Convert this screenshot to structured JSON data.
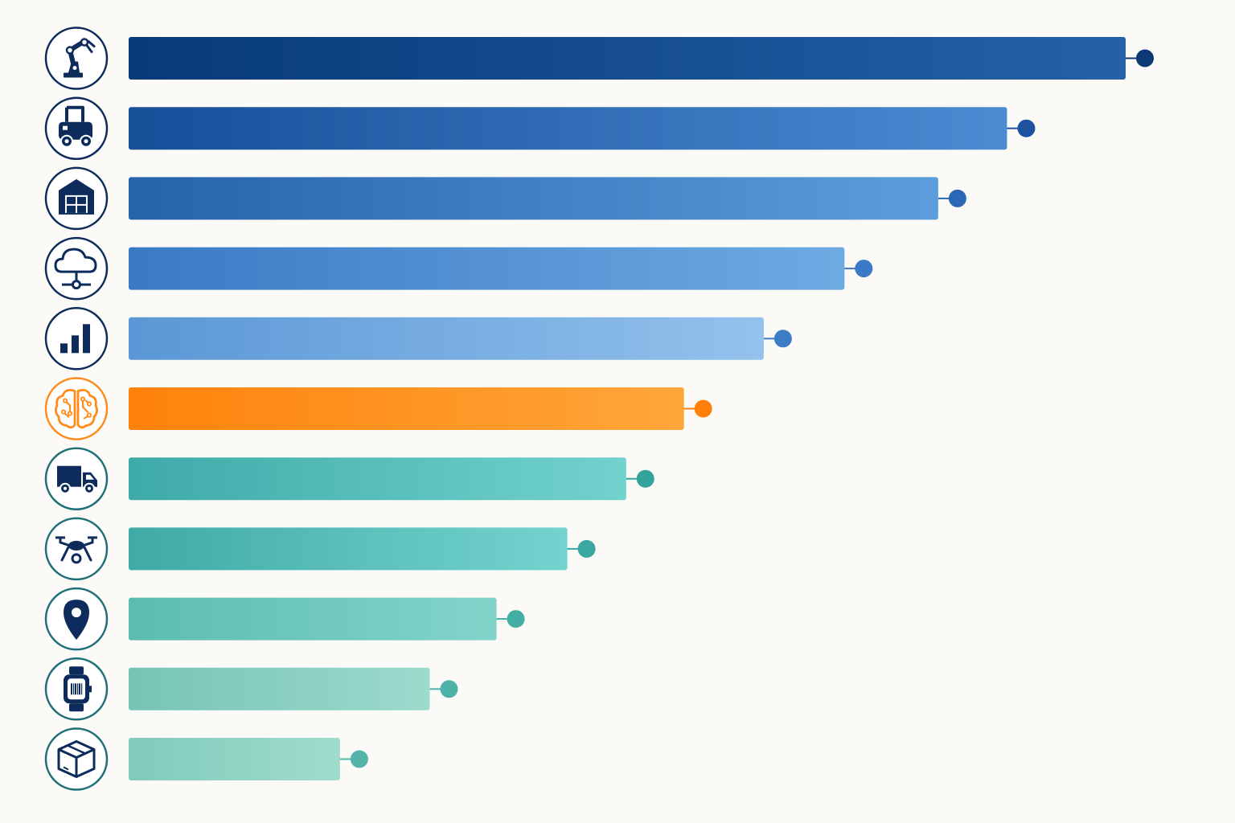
{
  "background": "#fbfaf6",
  "chart_data": {
    "type": "bar",
    "orientation": "horizontal",
    "title": "",
    "xlabel": "",
    "ylabel": "",
    "grid": false,
    "legend": "none",
    "xlim": [
      0,
      100
    ],
    "values": [
      100,
      88.1,
      81.2,
      71.8,
      63.7,
      55.7,
      49.9,
      44.0,
      36.9,
      30.2,
      21.2
    ],
    "categories": [
      "",
      "",
      "",
      "",
      "",
      "",
      "",
      "",
      "",
      "",
      ""
    ],
    "icons": [
      "robotic-arm-icon",
      "forklift-icon",
      "warehouse-icon",
      "cloud-network-icon",
      "bar-chart-icon",
      "ai-brain-icon",
      "delivery-truck-icon",
      "drone-icon",
      "location-pin-icon",
      "smartwatch-scanner-icon",
      "package-box-icon"
    ],
    "bar_colors": [
      [
        "#073a78",
        "#2461a8"
      ],
      [
        "#174f99",
        "#4a8bd2"
      ],
      [
        "#2563ab",
        "#5c9ddb"
      ],
      [
        "#3a7ac5",
        "#6eaae2"
      ],
      [
        "#5b97d6",
        "#93c2ec"
      ],
      [
        "#ff820a",
        "#ffa63a"
      ],
      [
        "#3eaaa8",
        "#72d2cd"
      ],
      [
        "#40aaa6",
        "#74d3ce"
      ],
      [
        "#5cbcb1",
        "#82d4c9"
      ],
      [
        "#76c4b6",
        "#9cdacc"
      ],
      [
        "#80cbbb",
        "#a0dccc"
      ]
    ],
    "icon_colors": [
      "#0d2c5c",
      "#0d2c5c",
      "#0d2c5c",
      "#0d2c5c",
      "#0d2c5c",
      "#ff8c1a",
      "#0d2c5c",
      "#0d2c5c",
      "#0d2c5c",
      "#0d2c5c",
      "#0d2c5c"
    ],
    "ring_colors": [
      "#0d2c5c",
      "#0d2c5c",
      "#0d2c5c",
      "#0d2c5c",
      "#0d2c5c",
      "#ff8c1a",
      "#1f6f78",
      "#1f6f78",
      "#1f6f78",
      "#1f6f78",
      "#1f6f78"
    ],
    "dot_colors": [
      "#0d3a75",
      "#1c52a0",
      "#2a67b5",
      "#3a79c6",
      "#3d7cc6",
      "#ff7f0a",
      "#33a39c",
      "#3aa8a0",
      "#42aea4",
      "#4eb2a8",
      "#55b4aa"
    ]
  }
}
